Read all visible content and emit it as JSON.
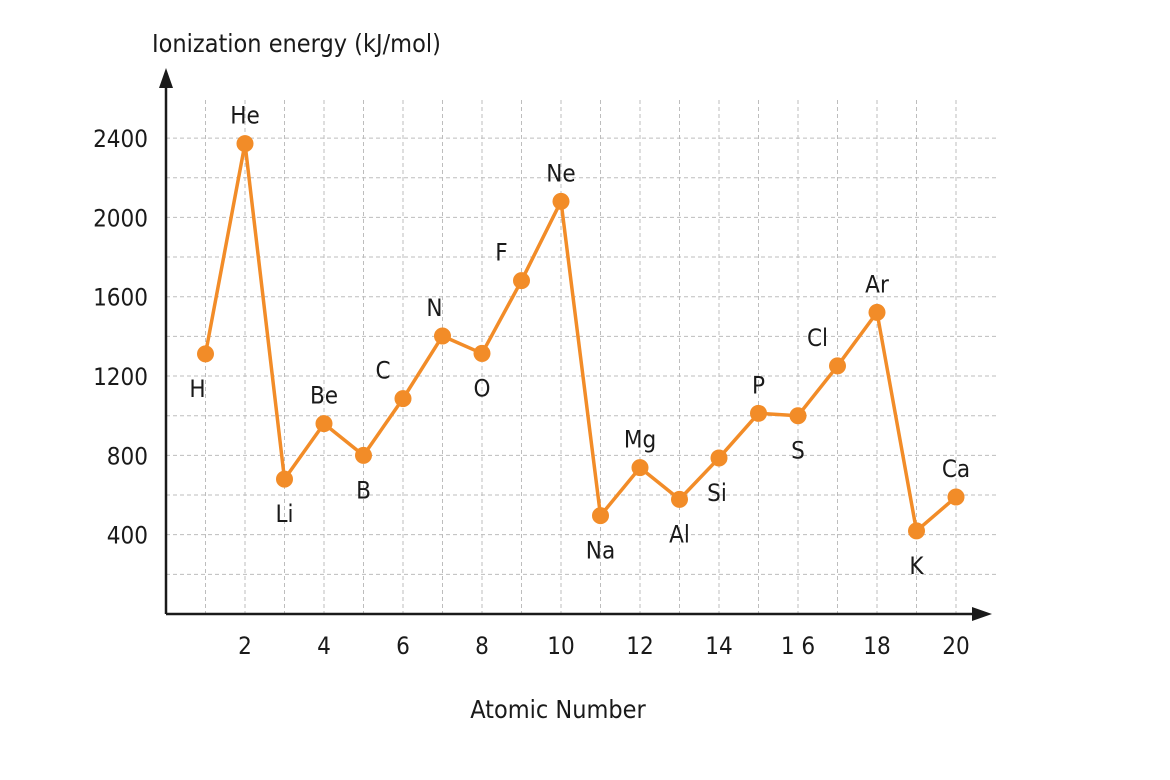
{
  "chart_data": {
    "type": "line",
    "title": "",
    "ylabel": "Ionization energy (kJ/mol)",
    "xlabel": "Atomic Number",
    "xlim": [
      0,
      21
    ],
    "ylim": [
      0,
      2400
    ],
    "x_ticks": [
      "2",
      "4",
      "6",
      "8",
      "10",
      "12",
      "14",
      "1 6",
      "18",
      "20"
    ],
    "y_ticks": [
      "400",
      "800",
      "1200",
      "1600",
      "2000",
      "2400"
    ],
    "grid": true,
    "color": "#f28c28",
    "series": [
      {
        "points": [
          {
            "x": 1,
            "y": 1312,
            "label": "H"
          },
          {
            "x": 2,
            "y": 2372,
            "label": "He"
          },
          {
            "x": 3,
            "y": 680,
            "label": "Li"
          },
          {
            "x": 4,
            "y": 960,
            "label": "Be"
          },
          {
            "x": 5,
            "y": 800,
            "label": "B"
          },
          {
            "x": 6,
            "y": 1086,
            "label": "C"
          },
          {
            "x": 7,
            "y": 1402,
            "label": "N"
          },
          {
            "x": 8,
            "y": 1314,
            "label": "O"
          },
          {
            "x": 9,
            "y": 1681,
            "label": "F"
          },
          {
            "x": 10,
            "y": 2081,
            "label": "Ne"
          },
          {
            "x": 11,
            "y": 496,
            "label": "Na"
          },
          {
            "x": 12,
            "y": 738,
            "label": "Mg"
          },
          {
            "x": 13,
            "y": 578,
            "label": "Al"
          },
          {
            "x": 14,
            "y": 787,
            "label": "Si"
          },
          {
            "x": 15,
            "y": 1012,
            "label": "P"
          },
          {
            "x": 16,
            "y": 1000,
            "label": "S"
          },
          {
            "x": 17,
            "y": 1251,
            "label": "Cl"
          },
          {
            "x": 18,
            "y": 1521,
            "label": "Ar"
          },
          {
            "x": 19,
            "y": 419,
            "label": "K"
          },
          {
            "x": 20,
            "y": 590,
            "label": "Ca"
          }
        ]
      }
    ]
  }
}
